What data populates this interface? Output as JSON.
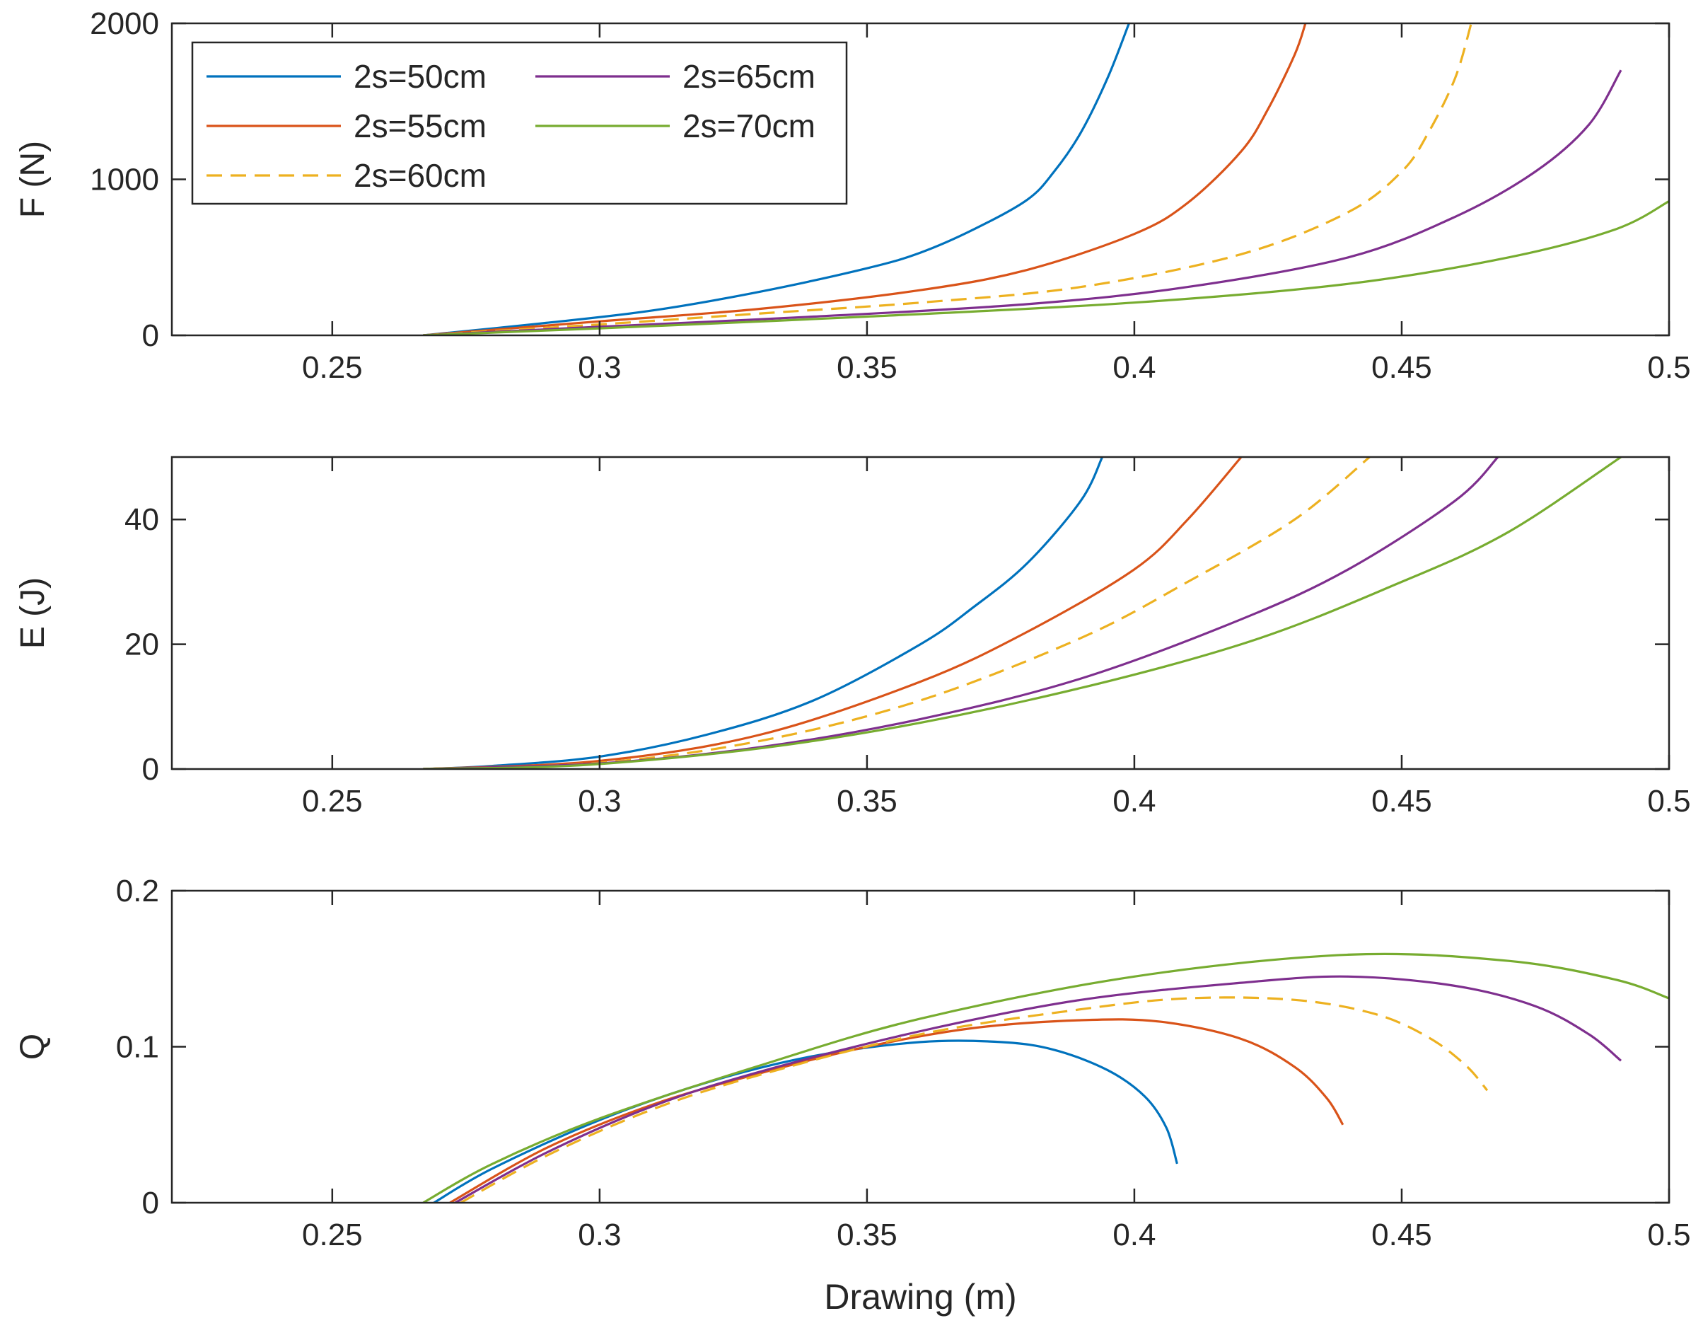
{
  "chart_data": {
    "type": "line",
    "xlabel": "Drawing (m)",
    "xlim": [
      0.22,
      0.5
    ],
    "xticks": [
      0.25,
      0.3,
      0.35,
      0.4,
      0.45,
      0.5
    ],
    "xtick_labels": [
      "0.25",
      "0.3",
      "0.35",
      "0.4",
      "0.45",
      "0.5"
    ],
    "legend": {
      "placement": "top-left of first panel",
      "entries": [
        {
          "name": "2s=50cm",
          "color": "#0072BD",
          "style": "solid"
        },
        {
          "name": "2s=55cm",
          "color": "#D95319",
          "style": "solid"
        },
        {
          "name": "2s=60cm",
          "color": "#EDB120",
          "style": "dashed"
        },
        {
          "name": "2s=65cm",
          "color": "#7E2F8E",
          "style": "solid"
        },
        {
          "name": "2s=70cm",
          "color": "#77AC30",
          "style": "solid"
        }
      ]
    },
    "panels": [
      {
        "id": "F",
        "ylabel": "F (N)",
        "ylim": [
          0,
          2000
        ],
        "yticks": [
          0,
          1000,
          2000
        ],
        "ytick_labels": [
          "0",
          "1000",
          "2000"
        ],
        "series": [
          {
            "name": "2s=50cm",
            "x": [
              0.267,
              0.29,
              0.31,
              0.33,
              0.35,
              0.36,
              0.37,
              0.38,
              0.385,
              0.39,
              0.395,
              0.399
            ],
            "y": [
              0,
              80,
              160,
              280,
              430,
              530,
              680,
              870,
              1050,
              1300,
              1650,
              2000
            ]
          },
          {
            "name": "2s=55cm",
            "x": [
              0.267,
              0.3,
              0.33,
              0.36,
              0.38,
              0.4,
              0.41,
              0.42,
              0.425,
              0.43,
              0.432
            ],
            "y": [
              0,
              90,
              170,
              290,
              420,
              650,
              850,
              1180,
              1450,
              1800,
              2000
            ]
          },
          {
            "name": "2s=60cm",
            "x": [
              0.267,
              0.3,
              0.33,
              0.36,
              0.39,
              0.42,
              0.44,
              0.45,
              0.455,
              0.46,
              0.463
            ],
            "y": [
              0,
              70,
              140,
              210,
              310,
              520,
              790,
              1050,
              1300,
              1650,
              2000
            ]
          },
          {
            "name": "2s=65cm",
            "x": [
              0.267,
              0.3,
              0.34,
              0.38,
              0.41,
              0.44,
              0.46,
              0.475,
              0.485,
              0.491
            ],
            "y": [
              0,
              55,
              120,
              200,
              310,
              500,
              760,
              1050,
              1350,
              1700
            ]
          },
          {
            "name": "2s=70cm",
            "x": [
              0.267,
              0.3,
              0.35,
              0.4,
              0.44,
              0.47,
              0.49,
              0.5
            ],
            "y": [
              0,
              45,
              120,
              210,
              330,
              500,
              680,
              860
            ]
          }
        ]
      },
      {
        "id": "E",
        "ylabel": "E (J)",
        "ylim": [
          0,
          50
        ],
        "yticks": [
          0,
          20,
          40
        ],
        "ytick_labels": [
          "0",
          "20",
          "40"
        ],
        "series": [
          {
            "name": "2s=50cm",
            "x": [
              0.267,
              0.28,
              0.3,
              0.32,
              0.34,
              0.36,
              0.37,
              0.38,
              0.39,
              0.394
            ],
            "y": [
              0,
              0.5,
              2,
              5.5,
              11,
              20,
              26,
              33,
              43,
              50
            ]
          },
          {
            "name": "2s=55cm",
            "x": [
              0.267,
              0.3,
              0.33,
              0.36,
              0.38,
              0.4,
              0.41,
              0.42
            ],
            "y": [
              0,
              1.3,
              5.5,
              14,
              22,
              32,
              40,
              50
            ]
          },
          {
            "name": "2s=60cm",
            "x": [
              0.267,
              0.3,
              0.33,
              0.36,
              0.39,
              0.41,
              0.43,
              0.444
            ],
            "y": [
              0,
              1,
              4.5,
              11,
              21,
              30,
              40,
              50
            ]
          },
          {
            "name": "2s=65cm",
            "x": [
              0.267,
              0.3,
              0.33,
              0.36,
              0.39,
              0.42,
              0.44,
              0.46,
              0.468
            ],
            "y": [
              0,
              0.9,
              3.5,
              8,
              14.5,
              24,
              32,
              43,
              50
            ]
          },
          {
            "name": "2s=70cm",
            "x": [
              0.267,
              0.3,
              0.34,
              0.38,
              0.42,
              0.45,
              0.47,
              0.491
            ],
            "y": [
              0,
              0.8,
              4.5,
              11,
              20,
              30,
              38,
              50
            ]
          }
        ]
      },
      {
        "id": "Q",
        "ylabel": "Q",
        "ylim": [
          0,
          0.2
        ],
        "yticks": [
          0,
          0.1,
          0.2
        ],
        "ytick_labels": [
          "0",
          "0.1",
          "0.2"
        ],
        "series": [
          {
            "name": "2s=50cm",
            "x": [
              0.269,
              0.28,
              0.3,
              0.32,
              0.34,
              0.36,
              0.375,
              0.385,
              0.395,
              0.402,
              0.406,
              0.408
            ],
            "y": [
              0,
              0.022,
              0.053,
              0.077,
              0.094,
              0.103,
              0.103,
              0.098,
              0.085,
              0.068,
              0.048,
              0.025
            ]
          },
          {
            "name": "2s=55cm",
            "x": [
              0.272,
              0.29,
              0.31,
              0.33,
              0.35,
              0.37,
              0.39,
              0.405,
              0.42,
              0.43,
              0.436,
              0.439
            ],
            "y": [
              0,
              0.035,
              0.063,
              0.083,
              0.1,
              0.112,
              0.117,
              0.116,
              0.105,
              0.087,
              0.067,
              0.05
            ]
          },
          {
            "name": "2s=60cm",
            "x": [
              0.274,
              0.29,
              0.31,
              0.33,
              0.36,
              0.39,
              0.41,
              0.43,
              0.445,
              0.455,
              0.462,
              0.466
            ],
            "y": [
              0,
              0.03,
              0.06,
              0.082,
              0.108,
              0.124,
              0.131,
              0.13,
              0.121,
              0.106,
              0.088,
              0.072
            ]
          },
          {
            "name": "2s=65cm",
            "x": [
              0.273,
              0.29,
              0.31,
              0.33,
              0.36,
              0.39,
              0.42,
              0.44,
              0.46,
              0.475,
              0.485,
              0.491
            ],
            "y": [
              0,
              0.032,
              0.062,
              0.084,
              0.11,
              0.13,
              0.141,
              0.145,
              0.139,
              0.126,
              0.108,
              0.091
            ]
          },
          {
            "name": "2s=70cm",
            "x": [
              0.267,
              0.28,
              0.3,
              0.33,
              0.36,
              0.4,
              0.44,
              0.47,
              0.49,
              0.5
            ],
            "y": [
              0,
              0.025,
              0.054,
              0.088,
              0.118,
              0.145,
              0.159,
              0.155,
              0.143,
              0.131
            ]
          }
        ]
      }
    ]
  }
}
